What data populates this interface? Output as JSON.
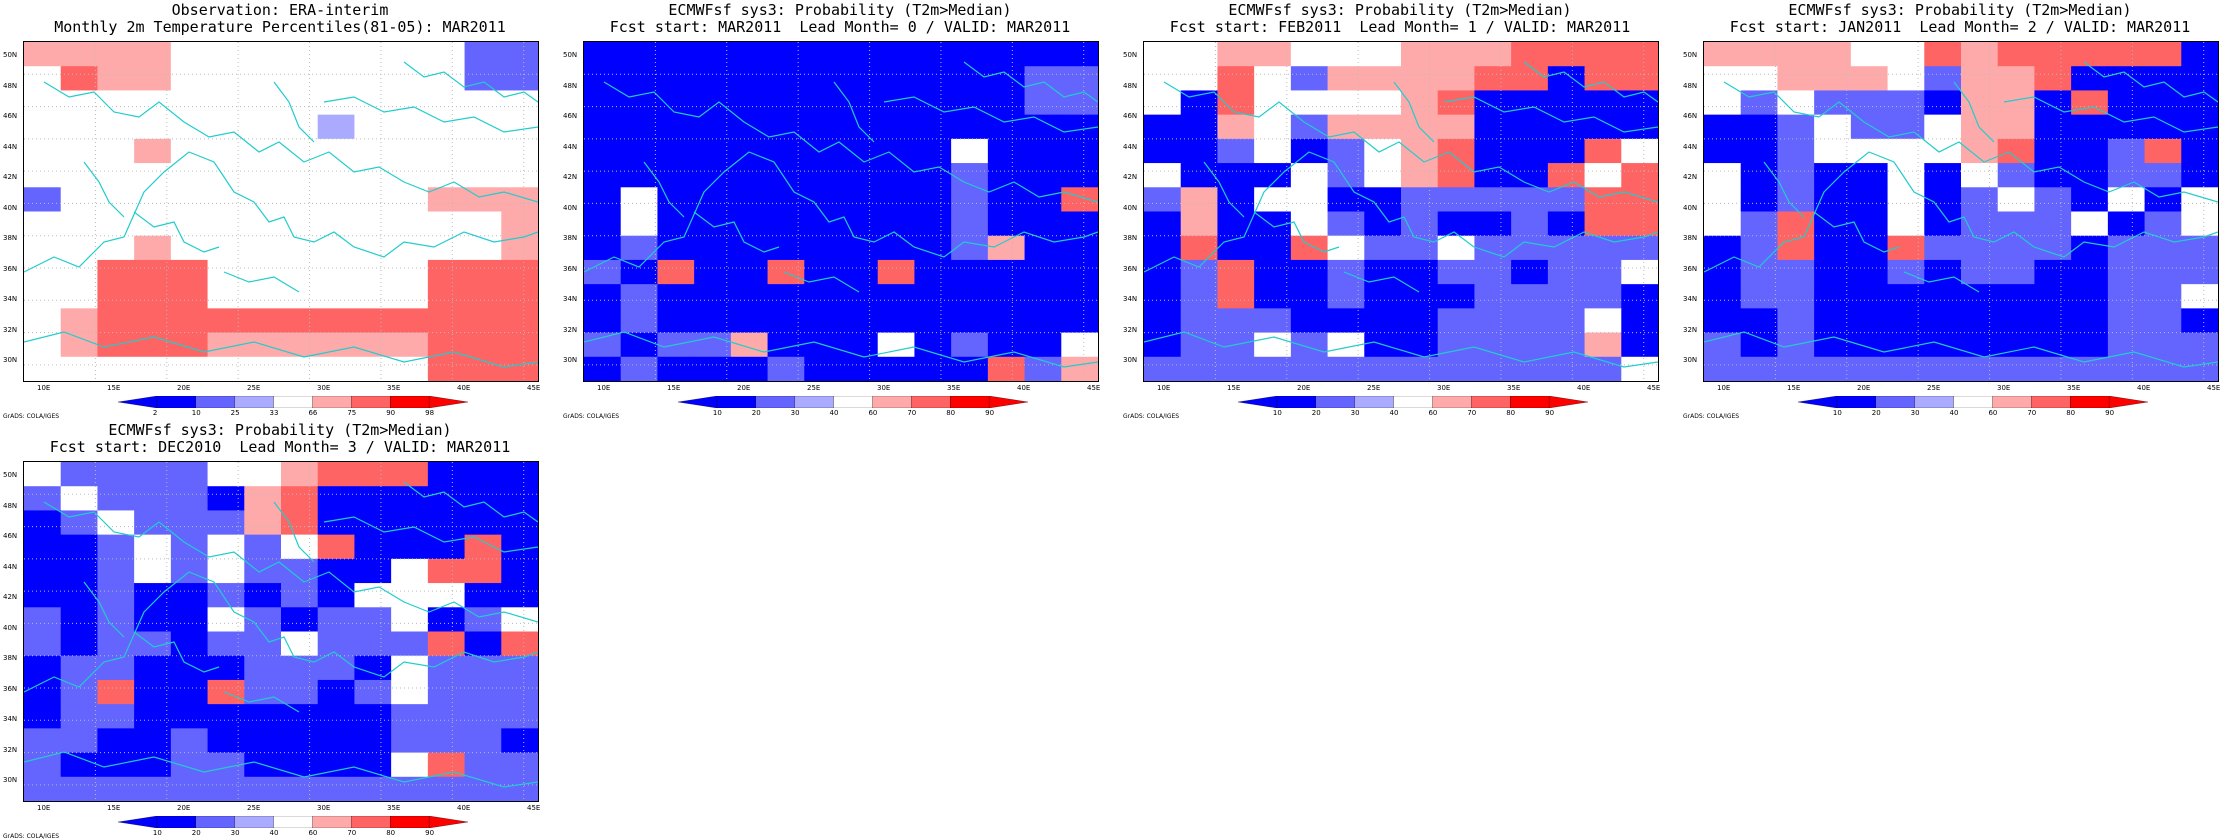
{
  "xlabels": [
    "10E",
    "15E",
    "20E",
    "25E",
    "30E",
    "35E",
    "40E",
    "45E"
  ],
  "ylabels": [
    "50N",
    "48N",
    "46N",
    "44N",
    "42N",
    "40N",
    "38N",
    "36N",
    "34N",
    "32N",
    "30N"
  ],
  "grads_label": "GrADS: COLA/IGES",
  "palette": {
    "dark_blue": "#0000ff",
    "med_blue": "#6464ff",
    "light_blue": "#aaaaff",
    "white": "#ffffff",
    "light_red": "#ffaaaa",
    "med_red": "#ff6464",
    "dark_red": "#ff0000",
    "coast": "#22cccc",
    "grid": "#bbbbbb"
  },
  "panels": [
    {
      "title1": "Observation: ERA-interim",
      "title2": "Monthly 2m Temperature Percentiles(81-05): MAR2011",
      "colorbar_labels": [
        "2",
        "10",
        "25",
        "33",
        "66",
        "75",
        "90",
        "98"
      ],
      "grid": [
        "RRRRWWWWWWWWBB",
        "WMRRWWWWWWWWBB",
        "WWWWWWWWWWWWWW",
        "WWWWWWWWbWWWWW",
        "WWWRWWWWWWWWWW",
        "WWWWWWWWWWWWWW",
        "BWWWWWWWWWWRRR",
        "WWWWWWWWWWWWWR",
        "WWWRWWWWWWWWWR",
        "WWMMMWWWWWWMMM",
        "WWMMMWWWWWWMMM",
        "WRMMMMMMMMMMMM",
        "WRMMMRRRRRRMMM",
        "WWWWWWWWWWWMMM"
      ]
    },
    {
      "title1": "ECMWFsf sys3: Probability (T2m>Median)",
      "title2": "Fcst start: MAR2011  Lead Month= 0 / VALID: MAR2011",
      "colorbar_labels": [
        "10",
        "20",
        "30",
        "40",
        "60",
        "70",
        "80",
        "90"
      ],
      "grid": [
        "DDDDDDDDDDDDDD",
        "DDDDDDDDDDDDBB",
        "DDDDDDDDDDDDBB",
        "DDDDDDDDDDDDDD",
        "DDDDDDDDDDWDDD",
        "DDDDDDDDDDBDDD",
        "DWDDDDDDDDBDDM",
        "DWDDDDDDDDBDDD",
        "DBDDDDDDDDBRDD",
        "BDMDDMDDMDDDDD",
        "DBDDDDDDDDDDDD",
        "DBDDDDDDDDDDDD",
        "BDBBRDDDWDBDDW",
        "DBDDDBDDDDDMBR"
      ]
    },
    {
      "title1": "ECMWFsf sys3: Probability (T2m>Median)",
      "title2": "Fcst start: FEB2011  Lead Month= 1 / VALID: MAR2011",
      "colorbar_labels": [
        "10",
        "20",
        "30",
        "40",
        "60",
        "70",
        "80",
        "90"
      ],
      "grid": [
        "WWRRWWWRRRMMMM",
        "WWMWBRRRRMMDMM",
        "WDMWWWWRMDDDDD",
        "DDRWBRRRRDDDDD",
        "DDBWDBWRMDDDMW",
        "WDDDWBWRMDDMWM",
        "BRDWWDDBBBBBMM",
        "DRDDWBDBDDBDMM",
        "DMDDMWBBWBBBBB",
        "DBMDDBDDBBDBBW",
        "DBMDDBDDDBBBBD",
        "DBBBDDDDBBBBWD",
        "DBBWBWDDBBBBRD",
        "BBBBBBBBBBBBBW"
      ]
    },
    {
      "title1": "ECMWFsf sys3: Probability (T2m>Median)",
      "title2": "Fcst start: JAN2011  Lead Month= 2 / VALID: MAR2011",
      "colorbar_labels": [
        "10",
        "20",
        "30",
        "40",
        "60",
        "70",
        "80",
        "90"
      ],
      "grid": [
        "RRRRWWMRMMMMMD",
        "WWRRRWBRRMDDDD",
        "WBWBBBDRRDMDDD",
        "DDBWBBWRRDDDDD",
        "DDBWWWWRMDDBMD",
        "WDBDDWDWBDDBBD",
        "WDBDDWDBWBDWDW",
        "WBMDDWDBBBWDBW",
        "DBMDDMBBBBDBBB",
        "DBBDDBDBBDDBBB",
        "DBBDDDDDDDDBBW",
        "DDBDDDDDDDDBBD",
        "BDBDDDDDDDDBBB",
        "BBBBBBBBBBBBBB"
      ]
    },
    {
      "title1": "ECMWFsf sys3: Probability (T2m>Median)",
      "title2": "Fcst start: DEC2010  Lead Month= 3 / VALID: MAR2011",
      "colorbar_labels": [
        "10",
        "20",
        "30",
        "40",
        "60",
        "70",
        "80",
        "90"
      ],
      "grid": [
        "WBBBBWWRMMMDDD",
        "BWBBBDRMDDDDDD",
        "DBWBBBRMDDDDDD",
        "DDBWBWBWMDDDMD",
        "DDBWBWBBDDWMMD",
        "DDBDDBDBDWWWDD",
        "BDBDDWBDBBWDBW",
        "BDBBDBBWBBBMDM",
        "DBBDDDBBBDWBBB",
        "DBMDDMBBDBWBBB",
        "DBBDDDDDDDBBBB",
        "BBDDBDDDDDBBBD",
        "BDDDBBDDDDWMBB",
        "BBBBBBBBBBBBBB"
      ]
    }
  ]
}
